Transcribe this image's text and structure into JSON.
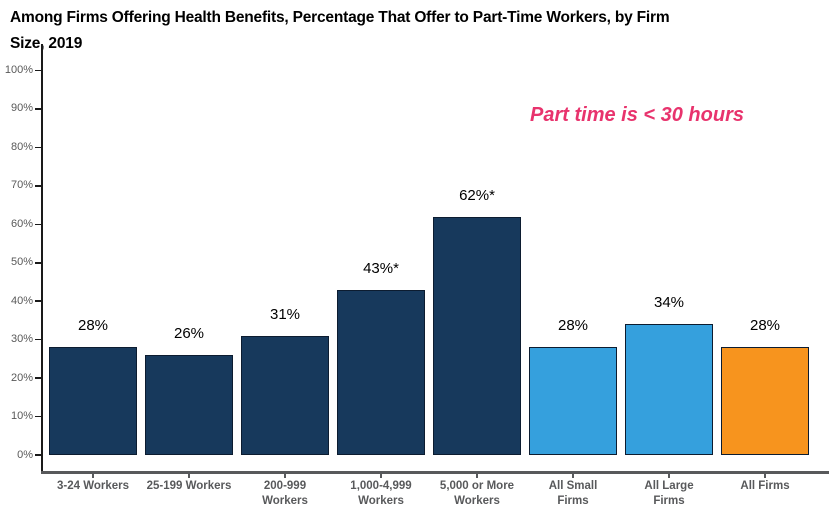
{
  "chart": {
    "title": "Among Firms Offering Health Benefits, Percentage That Offer to Part-Time Workers, by Firm Size, 2019",
    "title_lines": [
      "Among Firms Offering Health Benefits, Percentage That Offer to Part-Time Workers, by Firm",
      "Size, 2019"
    ],
    "annotation": "Part time is < 30 hours",
    "annotation_color": "#E8336D"
  },
  "chart_data": {
    "type": "bar",
    "title": "Among Firms Offering Health Benefits, Percentage That Offer to Part-Time Workers, by Firm Size, 2019",
    "categories": [
      "3-24 Workers",
      "25-199 Workers",
      "200-999 Workers",
      "1,000-4,999 Workers",
      "5,000 or More Workers",
      "All Small Firms",
      "All Large Firms",
      "All Firms"
    ],
    "category_label_lines": [
      [
        "3-24 Workers"
      ],
      [
        "25-199 Workers"
      ],
      [
        "200-999",
        "Workers"
      ],
      [
        "1,000-4,999",
        "Workers"
      ],
      [
        "5,000 or More",
        "Workers"
      ],
      [
        "All Small",
        "Firms"
      ],
      [
        "All Large",
        "Firms"
      ],
      [
        "All Firms"
      ]
    ],
    "values": [
      28,
      26,
      31,
      43,
      62,
      28,
      34,
      28
    ],
    "value_labels": [
      "28%",
      "26%",
      "31%",
      "43%*",
      "62%*",
      "28%",
      "34%",
      "28%"
    ],
    "bar_color_keys": [
      "navy",
      "navy",
      "navy",
      "navy",
      "navy",
      "blue",
      "blue",
      "orange"
    ],
    "colors": {
      "navy": "#17395C",
      "blue": "#35A0DD",
      "orange": "#F7941E"
    },
    "xlabel": "",
    "ylabel": "",
    "ylim": [
      0,
      100
    ],
    "ytick_labels": [
      "0%",
      "10%",
      "20%",
      "30%",
      "40%",
      "50%",
      "60%",
      "70%",
      "80%",
      "90%",
      "100%"
    ],
    "grid": false,
    "legend": "none",
    "annotation": "Part time is < 30 hours"
  }
}
